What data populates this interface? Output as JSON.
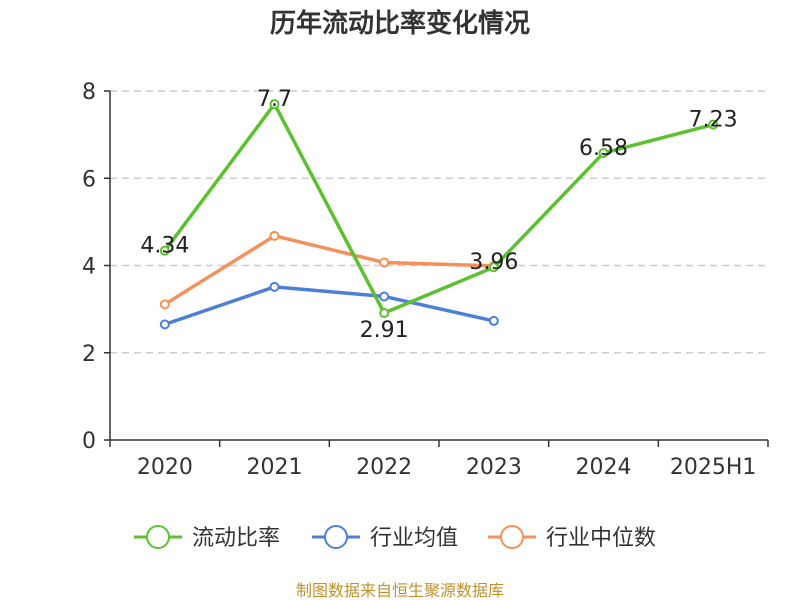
{
  "chart_data": {
    "type": "line",
    "title": "历年流动比率变化情况",
    "categories": [
      "2020",
      "2021",
      "2022",
      "2023",
      "2024",
      "2025H1"
    ],
    "ylim": [
      0,
      8
    ],
    "yticks": [
      0,
      2,
      4,
      6,
      8
    ],
    "grid": true,
    "legend_position": "bottom",
    "series": [
      {
        "name": "流动比率",
        "color": "#5cc12f",
        "values": [
          4.34,
          7.7,
          2.91,
          3.96,
          6.58,
          7.23
        ],
        "labels": [
          "4.34",
          "7.7",
          "2.91",
          "3.96",
          "6.58",
          "7.23"
        ]
      },
      {
        "name": "行业均值",
        "color": "#4e7fd8",
        "values": [
          2.65,
          3.51,
          3.29,
          2.73,
          null,
          null
        ]
      },
      {
        "name": "行业中位数",
        "color": "#f4915a",
        "values": [
          3.11,
          4.68,
          4.07,
          3.99,
          null,
          null
        ]
      }
    ]
  },
  "source": "制图数据来自恒生聚源数据库"
}
